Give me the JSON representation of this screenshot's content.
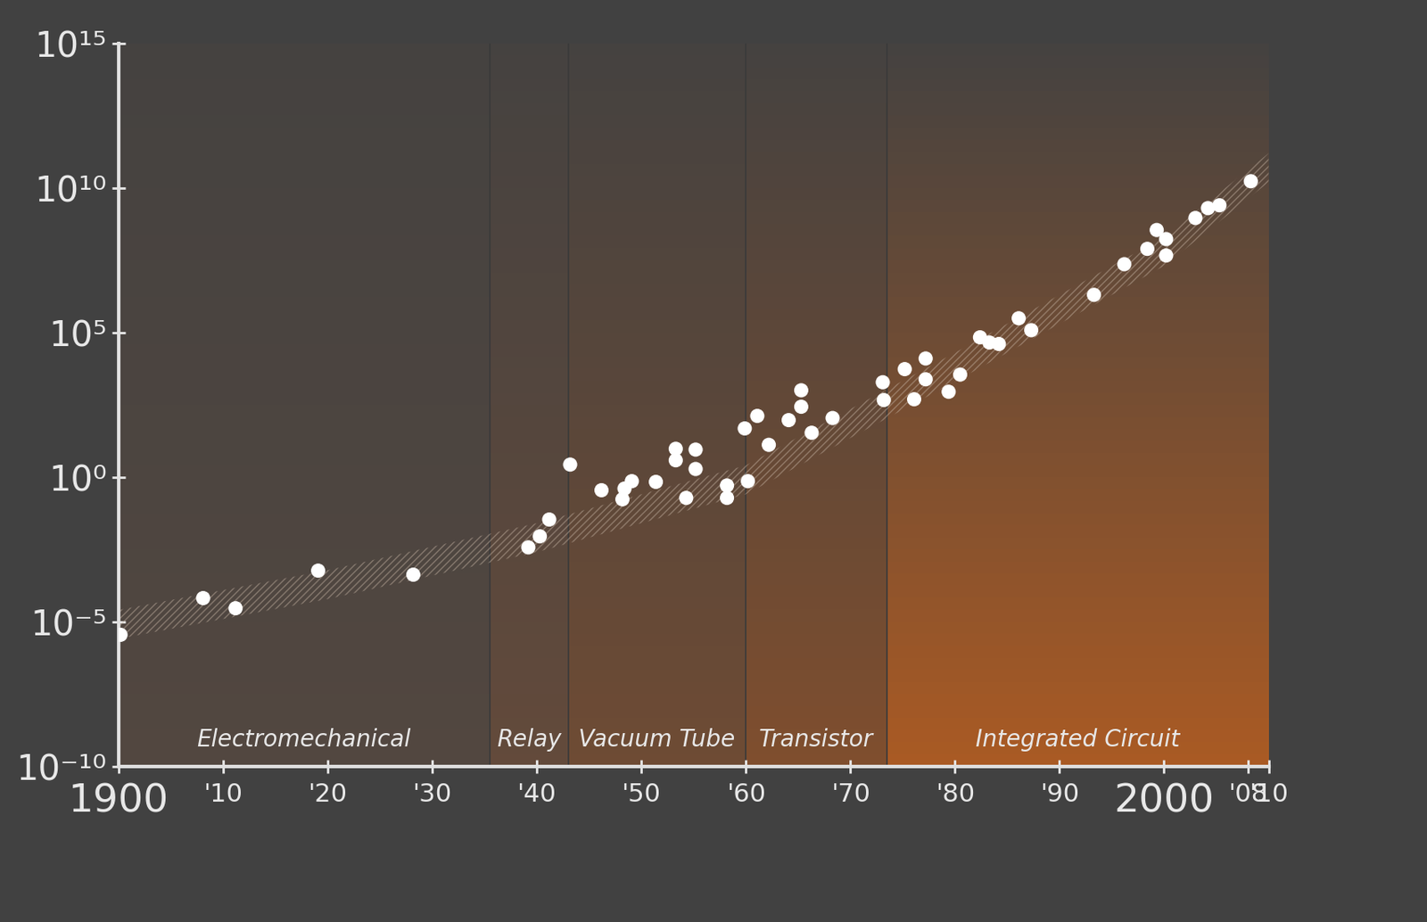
{
  "chart_data": {
    "type": "scatter",
    "log": "y",
    "color": "#ffffff",
    "marker": "o",
    "x": [
      1900.2,
      1908.1,
      1911.2,
      1919.1,
      1928.2,
      1939.2,
      1940.3,
      1941.2,
      1943.2,
      1946.2,
      1948.2,
      1948.4,
      1949.1,
      1951.4,
      1953.3,
      1953.3,
      1954.3,
      1955.2,
      1955.2,
      1958.2,
      1958.2,
      1960.2,
      1959.9,
      1961.1,
      1962.2,
      1964.1,
      1965.3,
      1965.3,
      1966.3,
      1968.3,
      1973.1,
      1973.2,
      1975.2,
      1976.1,
      1977.2,
      1977.2,
      1979.4,
      1980.5,
      1982.4,
      1983.3,
      1984.2,
      1986.1,
      1987.3,
      1993.3,
      1996.2,
      1998.4,
      1999.3,
      2000.2,
      2000.2,
      2003.0,
      2004.2,
      2005.3,
      2008.3
    ],
    "values": [
      3.5e-06,
      6.5e-05,
      2.9e-05,
      0.00058,
      0.00042,
      0.0037,
      0.0089,
      0.034,
      2.7,
      0.35,
      0.17,
      0.4,
      0.72,
      0.68,
      9.5,
      3.8,
      0.19,
      8.9,
      1.9,
      0.51,
      0.19,
      0.72,
      48,
      130,
      13,
      93,
      1000,
      270,
      34,
      110,
      1900,
      460,
      5400,
      490,
      12600,
      2400,
      890,
      3500,
      68000,
      45000,
      40000,
      310000,
      120000,
      2000000.0,
      23000000.0,
      78000000.0,
      350000000.0,
      170000000.0,
      46000000.0,
      910000000.0,
      2000000000.0,
      2500000000.0,
      17000000000.0
    ],
    "trend": {
      "x": [
        1900,
        1920,
        1940,
        1960,
        1980,
        2000,
        2010
      ],
      "values": [
        8e-06,
        0.00019,
        0.008,
        0.8,
        6300,
        63000000.0,
        50000000000.0
      ]
    },
    "eras": [
      {
        "name": "Electromechanical",
        "start": 1900,
        "end": 1935.5
      },
      {
        "name": "Relay",
        "start": 1935.5,
        "end": 1943
      },
      {
        "name": "Vacuum Tube",
        "start": 1943,
        "end": 1960
      },
      {
        "name": "Transistor",
        "start": 1960,
        "end": 1973.5
      },
      {
        "name": "Integrated Circuit",
        "start": 1973.5,
        "end": 2010
      }
    ],
    "xlim": [
      1900,
      2010
    ],
    "xticks": [
      1900,
      {
        "value": 1910,
        "label": "'10"
      },
      {
        "value": 1920,
        "label": "'20"
      },
      {
        "value": 1930,
        "label": "'30"
      },
      {
        "value": 1940,
        "label": "'40"
      },
      {
        "value": 1950,
        "label": "'50"
      },
      {
        "value": 1960,
        "label": "'60"
      },
      {
        "value": 1970,
        "label": "'70"
      },
      {
        "value": 1980,
        "label": "'80"
      },
      {
        "value": 1990,
        "label": "'90"
      },
      2000,
      {
        "value": 2008,
        "label": "'08"
      },
      {
        "value": 2010,
        "label": "'10"
      }
    ],
    "ylim": [
      1e-10,
      1000000000000000.0
    ],
    "yticks": [
      {
        "value": 1e-10,
        "label": "10⁻¹⁰"
      },
      {
        "value": 1e-05,
        "label": "10⁻⁵"
      },
      {
        "value": 1,
        "label": "10⁰"
      },
      {
        "value": 100000.0,
        "label": "10⁵"
      },
      {
        "value": 10000000000.0,
        "label": "10¹⁰"
      },
      {
        "value": 1000000000000000.0,
        "label": "10¹⁵"
      }
    ],
    "grid": false
  }
}
